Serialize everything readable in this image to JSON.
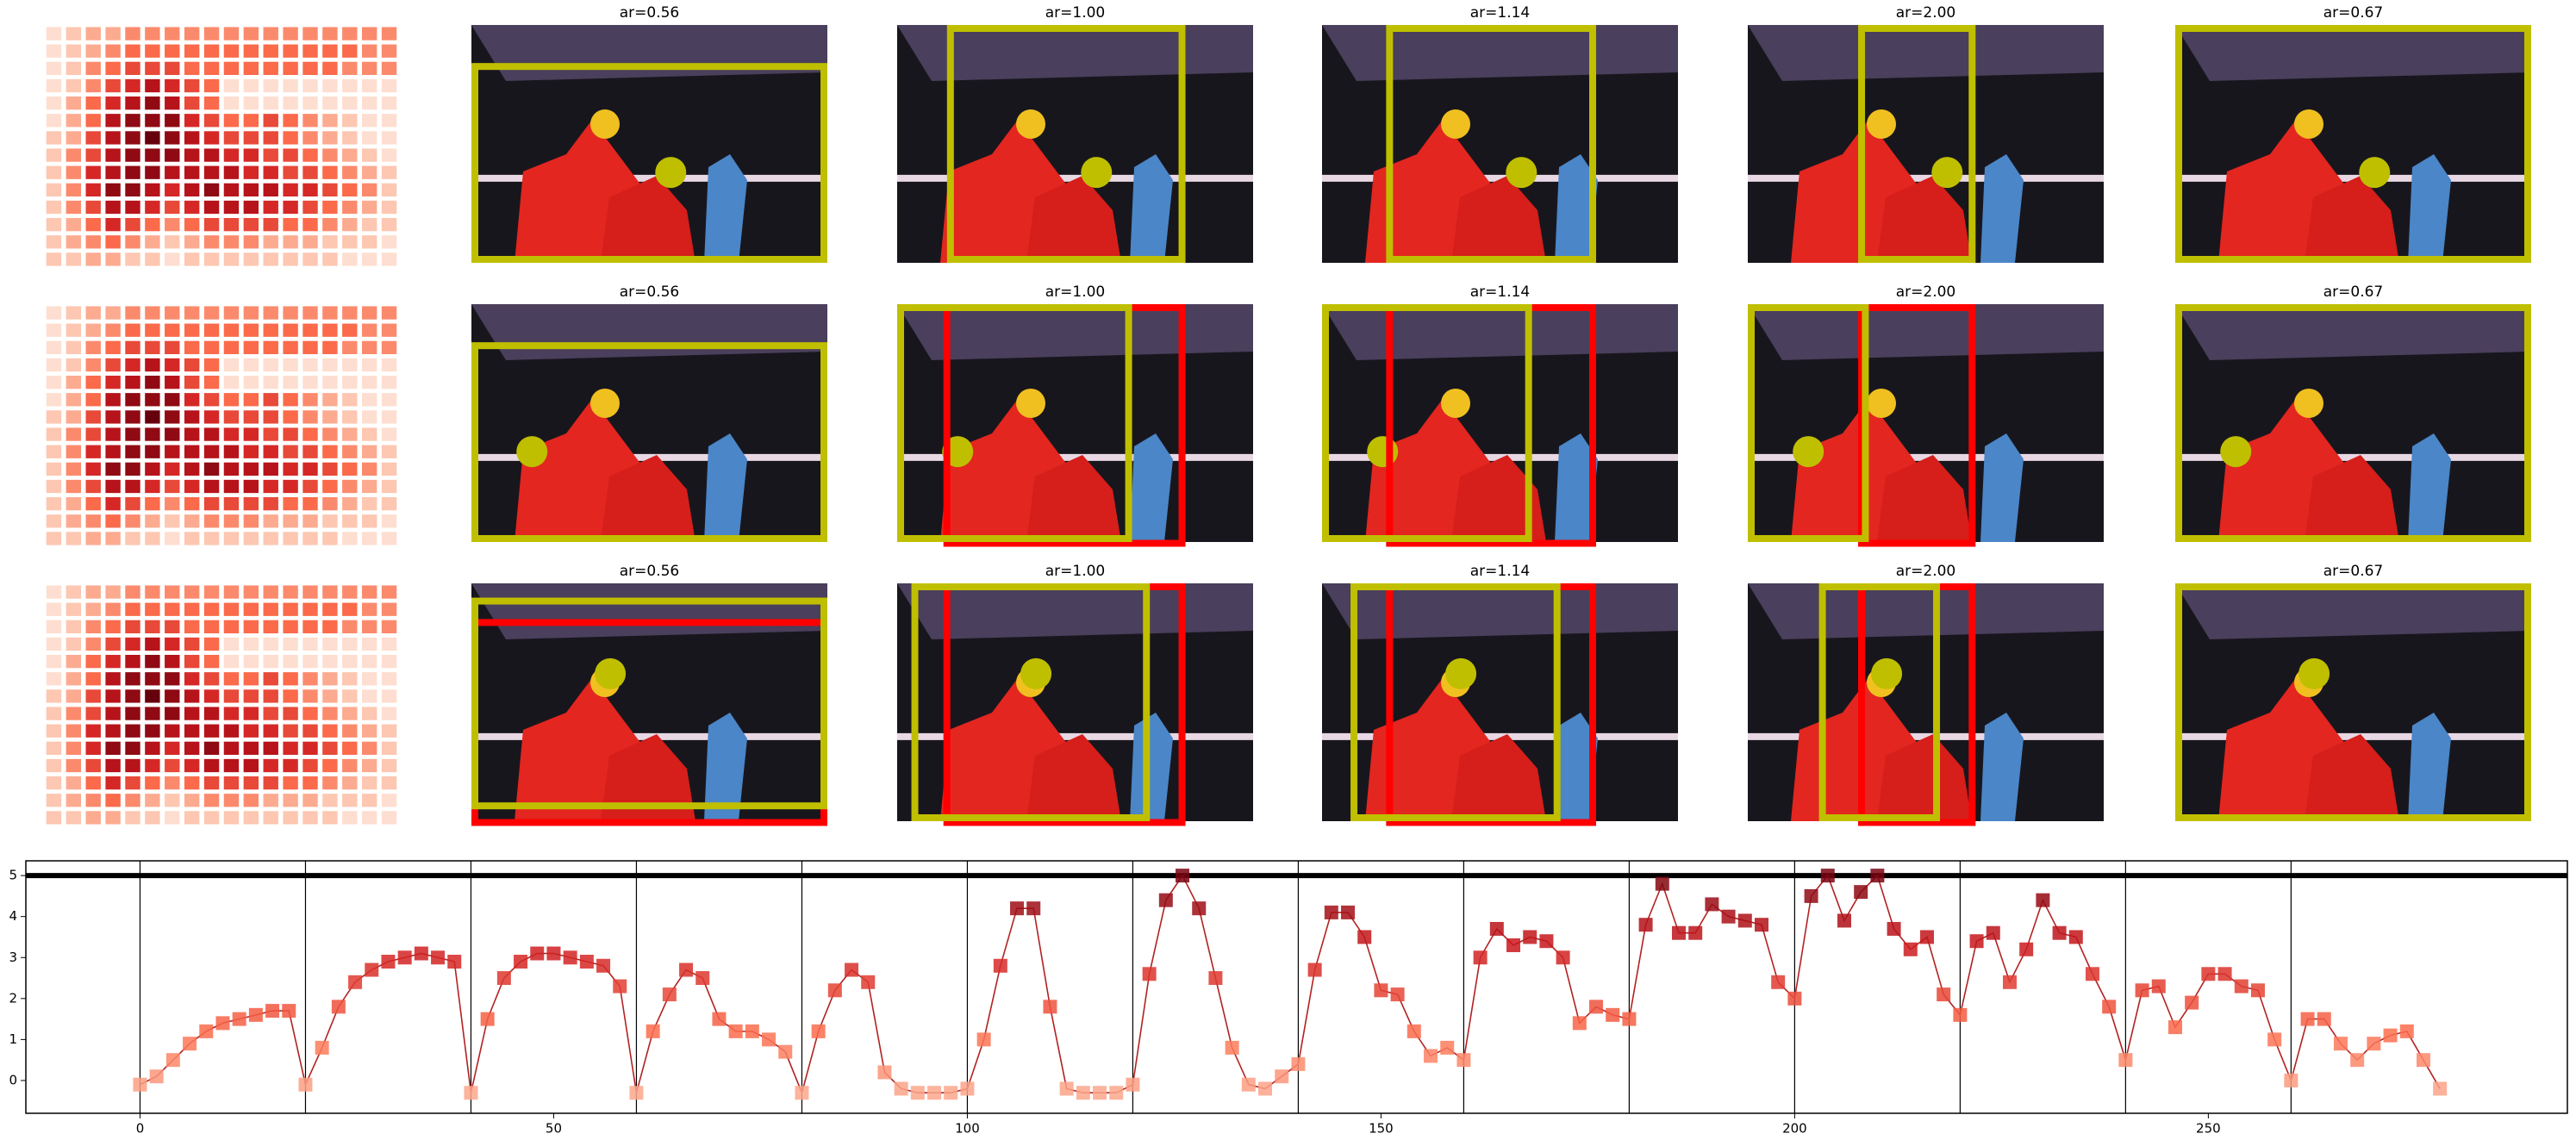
{
  "rows": [
    {
      "titles": [
        "ar=0.56",
        "ar=1.00",
        "ar=1.14",
        "ar=2.00",
        "ar=0.67"
      ]
    },
    {
      "titles": [
        "ar=0.56",
        "ar=1.00",
        "ar=1.14",
        "ar=2.00",
        "ar=0.67"
      ]
    },
    {
      "titles": [
        "ar=0.56",
        "ar=1.00",
        "ar=1.14",
        "ar=2.00",
        "ar=0.67"
      ]
    }
  ],
  "heatmap": {
    "colormap": "Reds",
    "values": [
      [
        0.1,
        0.2,
        0.3,
        0.3,
        0.4,
        0.4,
        0.4,
        0.4,
        0.4,
        0.4,
        0.4,
        0.4,
        0.4,
        0.4,
        0.4,
        0.4,
        0.4,
        0.4
      ],
      [
        0.1,
        0.2,
        0.3,
        0.4,
        0.5,
        0.5,
        0.5,
        0.5,
        0.5,
        0.5,
        0.5,
        0.5,
        0.5,
        0.5,
        0.5,
        0.5,
        0.4,
        0.4
      ],
      [
        0.1,
        0.2,
        0.4,
        0.5,
        0.6,
        0.6,
        0.6,
        0.5,
        0.5,
        0.5,
        0.5,
        0.5,
        0.5,
        0.5,
        0.5,
        0.4,
        0.4,
        0.4
      ],
      [
        0.1,
        0.2,
        0.4,
        0.6,
        0.7,
        0.8,
        0.7,
        0.6,
        0.5,
        0.1,
        0.1,
        0.1,
        0.1,
        0.1,
        0.1,
        0.1,
        0.1,
        0.1
      ],
      [
        0.1,
        0.3,
        0.5,
        0.7,
        0.8,
        0.9,
        0.8,
        0.6,
        0.5,
        0.1,
        0.1,
        0.1,
        0.1,
        0.1,
        0.1,
        0.1,
        0.1,
        0.1
      ],
      [
        0.1,
        0.3,
        0.5,
        0.8,
        0.9,
        0.9,
        0.9,
        0.7,
        0.6,
        0.5,
        0.5,
        0.6,
        0.5,
        0.4,
        0.3,
        0.2,
        0.1,
        0.1
      ],
      [
        0.2,
        0.3,
        0.6,
        0.8,
        0.9,
        1.0,
        0.9,
        0.8,
        0.7,
        0.6,
        0.6,
        0.6,
        0.5,
        0.4,
        0.3,
        0.2,
        0.1,
        0.1
      ],
      [
        0.2,
        0.4,
        0.6,
        0.8,
        0.9,
        0.9,
        0.9,
        0.8,
        0.8,
        0.7,
        0.7,
        0.6,
        0.6,
        0.5,
        0.4,
        0.3,
        0.2,
        0.1
      ],
      [
        0.2,
        0.4,
        0.7,
        0.8,
        0.9,
        0.9,
        0.8,
        0.8,
        0.8,
        0.8,
        0.7,
        0.7,
        0.6,
        0.6,
        0.5,
        0.4,
        0.3,
        0.2
      ],
      [
        0.2,
        0.4,
        0.7,
        0.9,
        0.9,
        0.8,
        0.7,
        0.8,
        0.9,
        0.8,
        0.8,
        0.8,
        0.7,
        0.7,
        0.6,
        0.5,
        0.4,
        0.2
      ],
      [
        0.2,
        0.4,
        0.6,
        0.8,
        0.8,
        0.7,
        0.6,
        0.7,
        0.8,
        0.8,
        0.8,
        0.7,
        0.7,
        0.6,
        0.5,
        0.4,
        0.3,
        0.2
      ],
      [
        0.2,
        0.3,
        0.5,
        0.7,
        0.6,
        0.5,
        0.4,
        0.5,
        0.6,
        0.6,
        0.6,
        0.6,
        0.5,
        0.5,
        0.4,
        0.3,
        0.2,
        0.2
      ],
      [
        0.2,
        0.3,
        0.4,
        0.5,
        0.4,
        0.3,
        0.2,
        0.3,
        0.4,
        0.4,
        0.4,
        0.3,
        0.3,
        0.3,
        0.2,
        0.2,
        0.2,
        0.1
      ],
      [
        0.2,
        0.2,
        0.3,
        0.3,
        0.2,
        0.2,
        0.1,
        0.2,
        0.2,
        0.2,
        0.2,
        0.2,
        0.2,
        0.2,
        0.2,
        0.1,
        0.1,
        0.1
      ]
    ]
  },
  "chart_data": {
    "type": "line",
    "colormap": "Reds",
    "color": "#b22222",
    "x": [
      0,
      2,
      4,
      6,
      8,
      10,
      12,
      14,
      16,
      18,
      20,
      22,
      24,
      26,
      28,
      30,
      32,
      34,
      36,
      38,
      40,
      42,
      44,
      46,
      48,
      50,
      52,
      54,
      56,
      58,
      60,
      62,
      64,
      66,
      68,
      70,
      72,
      74,
      76,
      78,
      80,
      82,
      84,
      86,
      88,
      90,
      92,
      94,
      96,
      98,
      100,
      102,
      104,
      106,
      108,
      110,
      112,
      114,
      116,
      118,
      120,
      122,
      124,
      126,
      128,
      130,
      132,
      134,
      136,
      138,
      140,
      142,
      144,
      146,
      148,
      150,
      152,
      154,
      156,
      158,
      160,
      162,
      164,
      166,
      168,
      170,
      172,
      174,
      176,
      178,
      180,
      182,
      184,
      186,
      188,
      190,
      192,
      194,
      196,
      198,
      200,
      202,
      204,
      206,
      208,
      210,
      212,
      214,
      216,
      218,
      220,
      222,
      224,
      226,
      228,
      230,
      232,
      234,
      236,
      238,
      240,
      242,
      244,
      246,
      248,
      250,
      252,
      254,
      256,
      258,
      260,
      262,
      264,
      266,
      268,
      270,
      272,
      274,
      276,
      278
    ],
    "values": [
      -0.1,
      0.1,
      0.5,
      0.9,
      1.2,
      1.4,
      1.5,
      1.6,
      1.7,
      1.7,
      -0.1,
      0.8,
      1.8,
      2.4,
      2.7,
      2.9,
      3.0,
      3.1,
      3.0,
      2.9,
      -0.3,
      1.5,
      2.5,
      2.9,
      3.1,
      3.1,
      3.0,
      2.9,
      2.8,
      2.3,
      -0.3,
      1.2,
      2.1,
      2.7,
      2.5,
      1.5,
      1.2,
      1.2,
      1.0,
      0.7,
      -0.3,
      1.2,
      2.2,
      2.7,
      2.4,
      0.2,
      -0.2,
      -0.3,
      -0.3,
      -0.3,
      -0.2,
      1.0,
      2.8,
      4.2,
      4.2,
      1.8,
      -0.2,
      -0.3,
      -0.3,
      -0.3,
      -0.1,
      2.6,
      4.4,
      5.0,
      4.2,
      2.5,
      0.8,
      -0.1,
      -0.2,
      0.1,
      0.4,
      2.7,
      4.1,
      4.1,
      3.5,
      2.2,
      2.1,
      1.2,
      0.6,
      0.8,
      0.5,
      3.0,
      3.7,
      3.3,
      3.5,
      3.4,
      3.0,
      1.4,
      1.8,
      1.6,
      1.5,
      3.8,
      4.8,
      3.6,
      3.6,
      4.3,
      4.0,
      3.9,
      3.8,
      2.4,
      2.0,
      4.5,
      5.0,
      3.9,
      4.6,
      5.0,
      3.7,
      3.2,
      3.5,
      2.1,
      1.6,
      3.4,
      3.6,
      2.4,
      3.2,
      4.4,
      3.6,
      3.5,
      2.6,
      1.8,
      0.5,
      2.2,
      2.3,
      1.3,
      1.9,
      2.6,
      2.6,
      2.3,
      2.2,
      1.0,
      0.0,
      1.5,
      1.5,
      0.9,
      0.5,
      0.9,
      1.1,
      1.2,
      0.5,
      -0.2
    ],
    "xlim": [
      -13.8,
      293.4
    ],
    "ylim": [
      -0.8,
      5.36
    ],
    "xticks": [
      0,
      50,
      100,
      150,
      200,
      250
    ],
    "yticks": [
      0,
      1,
      2,
      3,
      4,
      5
    ],
    "vlines": [
      0,
      20,
      40,
      60,
      80,
      100,
      120,
      140,
      160,
      180,
      200,
      220,
      240,
      260
    ],
    "hline": 5
  }
}
